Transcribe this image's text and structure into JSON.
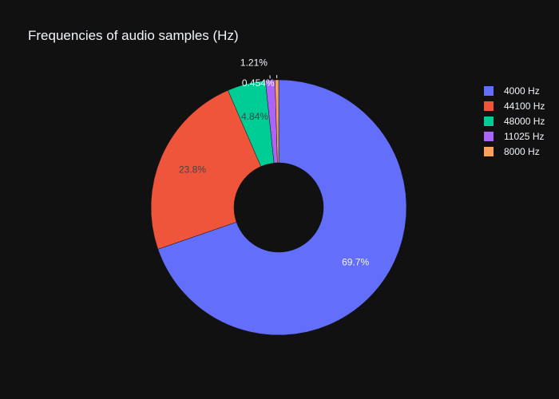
{
  "chart_data": {
    "type": "pie",
    "hole": true,
    "title": "Frequencies of audio samples (Hz)",
    "slices": [
      {
        "label": "4000 Hz",
        "value": 69.7,
        "text": "69.7%",
        "color": "#636efa"
      },
      {
        "label": "44100 Hz",
        "value": 23.8,
        "text": "23.8%",
        "color": "#ef553b"
      },
      {
        "label": "48000 Hz",
        "value": 4.84,
        "text": "4.84%",
        "color": "#00cc96"
      },
      {
        "label": "11025 Hz",
        "value": 1.21,
        "text": "1.21%",
        "color": "#ab63fa"
      },
      {
        "label": "8000 Hz",
        "value": 0.454,
        "text": "0.454%",
        "color": "#ffa15a"
      }
    ],
    "legend_position": "top-right",
    "background": "#111111",
    "text_color": "#f2f5fa"
  }
}
